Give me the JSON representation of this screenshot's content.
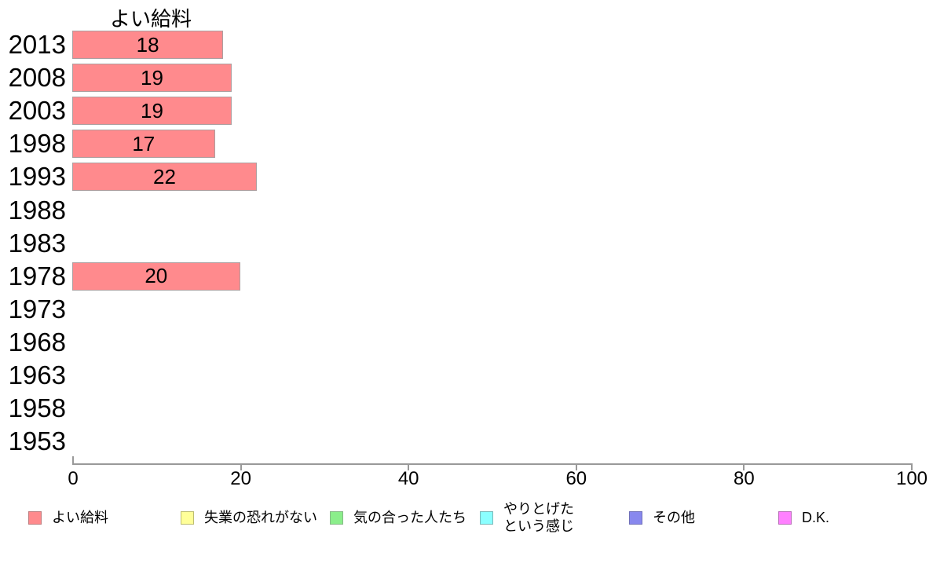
{
  "chart_data": {
    "type": "bar",
    "orientation": "horizontal",
    "title": "よい給料",
    "categories": [
      "2013",
      "2008",
      "2003",
      "1998",
      "1993",
      "1988",
      "1983",
      "1978",
      "1973",
      "1968",
      "1963",
      "1958",
      "1953"
    ],
    "values": [
      18,
      19,
      19,
      17,
      22,
      null,
      null,
      20,
      null,
      null,
      null,
      null,
      null
    ],
    "xlabel": "",
    "ylabel": "",
    "xlim": [
      0,
      100
    ],
    "x_ticks": [
      0,
      20,
      40,
      60,
      80,
      100
    ],
    "grid": false,
    "bar_fill_color": "#ff8a8d",
    "bar_border_color": "#ad9fa0",
    "axis_color": "#999999",
    "text_color": "#000000",
    "legend_position": "bottom",
    "legend": [
      {
        "label": "よい給料",
        "color": "#ff8a8d",
        "border": "#bd7d7f"
      },
      {
        "label": "失業の恐れがない",
        "color": "#ffff99",
        "border": "#bdbd71"
      },
      {
        "label": "気の合った人たち",
        "color": "#8bee8b",
        "border": "#85b885"
      },
      {
        "label": "やりとげた\nという感じ",
        "color": "#8bffff",
        "border": "#7ab8b8"
      },
      {
        "label": "その他",
        "color": "#8888ee",
        "border": "#7070b8"
      },
      {
        "label": "D.K.",
        "color": "#ff80ff",
        "border": "#b870b8"
      }
    ]
  }
}
